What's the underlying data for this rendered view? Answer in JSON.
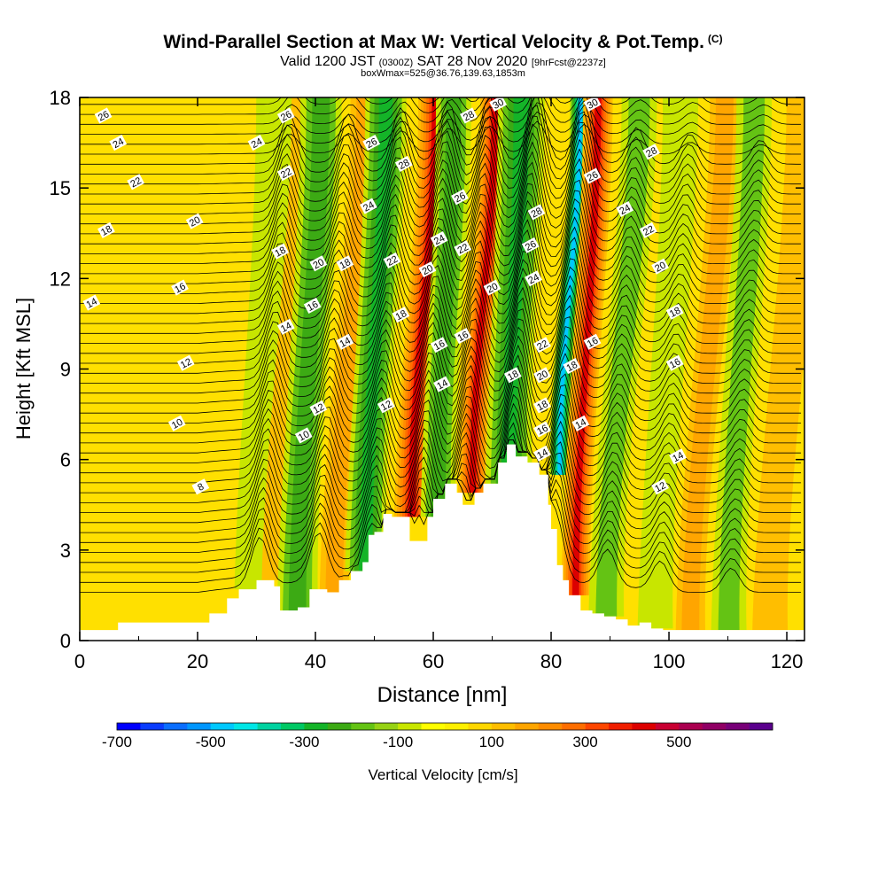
{
  "header": {
    "title": "Wind-Parallel Section at Max W: Vertical Velocity & Pot.Temp.",
    "copyright": "(C)",
    "valid_prefix": "Valid 1200 JST",
    "valid_utc": "(0300Z)",
    "valid_date": "SAT 28 Nov 2020",
    "forecast": "[9hrFcst@2237z]",
    "box_info": "boxWmax=525@36.76,139.63,1853m"
  },
  "chart_data": {
    "type": "heatmap",
    "title": "Wind-Parallel Section at Max W: Vertical Velocity & Pot.Temp.",
    "xlabel": "Distance [nm]",
    "ylabel": "Height [Kft MSL]",
    "xlim": [
      0,
      123
    ],
    "ylim": [
      0,
      18
    ],
    "xticks": [
      0,
      20,
      40,
      60,
      80,
      100,
      120
    ],
    "yticks": [
      0,
      3,
      6,
      9,
      12,
      15,
      18
    ],
    "grid": false,
    "colorbar": {
      "label": "Vertical Velocity [cm/s]",
      "tick_labels": [
        "-700",
        "-500",
        "-300",
        "-100",
        "100",
        "300",
        "500"
      ],
      "tick_values": [
        -700,
        -500,
        -300,
        -100,
        100,
        300,
        500
      ],
      "range": [
        -700,
        700
      ],
      "colors": [
        "#0000ff",
        "#0a3cff",
        "#0a6eff",
        "#0096ff",
        "#00c8ff",
        "#00e6e6",
        "#00d2a0",
        "#00c864",
        "#14b428",
        "#3caa14",
        "#64c314",
        "#96d214",
        "#c8e600",
        "#ffff00",
        "#fff000",
        "#ffd700",
        "#ffbe00",
        "#ffa500",
        "#ff8c00",
        "#ff6e00",
        "#ff4600",
        "#f01e00",
        "#dc0000",
        "#c80032",
        "#aa0050",
        "#900064",
        "#780078",
        "#5a008c"
      ]
    },
    "series": [
      {
        "name": "Vertical Velocity",
        "columns": [
          {
            "x": 28.5,
            "w": 3.0,
            "v": -150
          },
          {
            "x": 32.5,
            "w": 2.5,
            "v": 120
          },
          {
            "x": 36.5,
            "w": 3.5,
            "v": -220
          },
          {
            "x": 42.5,
            "w": 2.5,
            "v": 180
          },
          {
            "x": 47.5,
            "w": 3.5,
            "v": -300
          },
          {
            "x": 54.5,
            "w": 3.0,
            "v": 420
          },
          {
            "x": 59.0,
            "w": 3.0,
            "v": -260
          },
          {
            "x": 64.5,
            "w": 2.5,
            "v": 400
          },
          {
            "x": 70.5,
            "w": 4.0,
            "v": -320
          },
          {
            "x": 79.0,
            "w": 1.8,
            "v": -480
          },
          {
            "x": 83.5,
            "w": 2.5,
            "v": 450
          },
          {
            "x": 89.0,
            "w": 3.0,
            "v": -160
          },
          {
            "x": 97.5,
            "w": 3.0,
            "v": -140
          },
          {
            "x": 103.5,
            "w": 2.5,
            "v": 160
          },
          {
            "x": 110.0,
            "w": 3.0,
            "v": -170
          },
          {
            "x": 117.0,
            "w": 3.0,
            "v": 150
          }
        ]
      },
      {
        "name": "Pot.Temp.",
        "contour_labels": [
          {
            "x": 4,
            "y": 17.4,
            "t": "26"
          },
          {
            "x": 6.5,
            "y": 16.5,
            "t": "24"
          },
          {
            "x": 9.5,
            "y": 15.2,
            "t": "22"
          },
          {
            "x": 4.5,
            "y": 13.6,
            "t": "18"
          },
          {
            "x": 2,
            "y": 11.2,
            "t": "14"
          },
          {
            "x": 19.5,
            "y": 13.9,
            "t": "20"
          },
          {
            "x": 17,
            "y": 11.7,
            "t": "16"
          },
          {
            "x": 18,
            "y": 9.2,
            "t": "12"
          },
          {
            "x": 16.5,
            "y": 7.2,
            "t": "10"
          },
          {
            "x": 20.5,
            "y": 5.1,
            "t": "8"
          },
          {
            "x": 35,
            "y": 17.4,
            "t": "26"
          },
          {
            "x": 30,
            "y": 16.5,
            "t": "24"
          },
          {
            "x": 35,
            "y": 15.5,
            "t": "22"
          },
          {
            "x": 34,
            "y": 12.9,
            "t": "18"
          },
          {
            "x": 40.5,
            "y": 12.5,
            "t": "20"
          },
          {
            "x": 39.5,
            "y": 11.1,
            "t": "16"
          },
          {
            "x": 35,
            "y": 10.4,
            "t": "14"
          },
          {
            "x": 40.5,
            "y": 7.7,
            "t": "12"
          },
          {
            "x": 38,
            "y": 6.8,
            "t": "10"
          },
          {
            "x": 49.5,
            "y": 16.5,
            "t": "26"
          },
          {
            "x": 55,
            "y": 15.8,
            "t": "28"
          },
          {
            "x": 49,
            "y": 14.4,
            "t": "24"
          },
          {
            "x": 45,
            "y": 12.5,
            "t": "18"
          },
          {
            "x": 45,
            "y": 9.9,
            "t": "14"
          },
          {
            "x": 53,
            "y": 12.6,
            "t": "22"
          },
          {
            "x": 54.5,
            "y": 10.8,
            "t": "18"
          },
          {
            "x": 52,
            "y": 7.8,
            "t": "12"
          },
          {
            "x": 66,
            "y": 17.4,
            "t": "28"
          },
          {
            "x": 64.5,
            "y": 14.7,
            "t": "26"
          },
          {
            "x": 61,
            "y": 13.3,
            "t": "24"
          },
          {
            "x": 59,
            "y": 12.3,
            "t": "20"
          },
          {
            "x": 65,
            "y": 13.0,
            "t": "22"
          },
          {
            "x": 61,
            "y": 9.8,
            "t": "16"
          },
          {
            "x": 65,
            "y": 10.1,
            "t": "16"
          },
          {
            "x": 61.5,
            "y": 8.5,
            "t": "14"
          },
          {
            "x": 71,
            "y": 17.8,
            "t": "30"
          },
          {
            "x": 70,
            "y": 11.7,
            "t": "20"
          },
          {
            "x": 77.5,
            "y": 14.2,
            "t": "28"
          },
          {
            "x": 76.5,
            "y": 13.1,
            "t": "26"
          },
          {
            "x": 77,
            "y": 12.0,
            "t": "24"
          },
          {
            "x": 73.5,
            "y": 8.8,
            "t": "18"
          },
          {
            "x": 78.5,
            "y": 9.8,
            "t": "22"
          },
          {
            "x": 78.5,
            "y": 8.8,
            "t": "20"
          },
          {
            "x": 78.5,
            "y": 7.8,
            "t": "18"
          },
          {
            "x": 78.5,
            "y": 7.0,
            "t": "16"
          },
          {
            "x": 78.5,
            "y": 6.2,
            "t": "14"
          },
          {
            "x": 83.5,
            "y": 9.1,
            "t": "18"
          },
          {
            "x": 87,
            "y": 17.8,
            "t": "30"
          },
          {
            "x": 87,
            "y": 15.4,
            "t": "26"
          },
          {
            "x": 87,
            "y": 9.9,
            "t": "16"
          },
          {
            "x": 85,
            "y": 7.2,
            "t": "14"
          },
          {
            "x": 97,
            "y": 16.2,
            "t": "28"
          },
          {
            "x": 92.5,
            "y": 14.3,
            "t": "24"
          },
          {
            "x": 96.5,
            "y": 13.6,
            "t": "22"
          },
          {
            "x": 98.5,
            "y": 12.4,
            "t": "20"
          },
          {
            "x": 101,
            "y": 10.9,
            "t": "18"
          },
          {
            "x": 101,
            "y": 9.2,
            "t": "16"
          },
          {
            "x": 101.5,
            "y": 6.1,
            "t": "14"
          },
          {
            "x": 98.5,
            "y": 5.1,
            "t": "12"
          }
        ]
      },
      {
        "name": "Terrain",
        "x": [
          0,
          6.5,
          20,
          22,
          25,
          27,
          30,
          33,
          34,
          37,
          39,
          42,
          44,
          46,
          48,
          49,
          50,
          51.5,
          53,
          56,
          59,
          60,
          62,
          64,
          65,
          67,
          68.5,
          71,
          72.5,
          74,
          76,
          78,
          79.5,
          80,
          81,
          82,
          83,
          85,
          87,
          89,
          91,
          93,
          94,
          95,
          97,
          99,
          123
        ],
        "y": [
          0.35,
          0.6,
          0.6,
          0.9,
          1.4,
          1.7,
          2.0,
          1.8,
          1.0,
          1.1,
          1.7,
          1.6,
          2.0,
          2.3,
          2.6,
          3.5,
          3.6,
          4.2,
          4.1,
          3.3,
          4.1,
          4.7,
          5.2,
          4.9,
          4.5,
          4.9,
          5.2,
          5.9,
          6.5,
          6.1,
          5.9,
          5.5,
          4.5,
          3.7,
          2.5,
          2.0,
          1.5,
          1.0,
          0.9,
          0.8,
          0.7,
          0.5,
          0.5,
          0.6,
          0.4,
          0.35,
          0.35
        ]
      }
    ]
  }
}
